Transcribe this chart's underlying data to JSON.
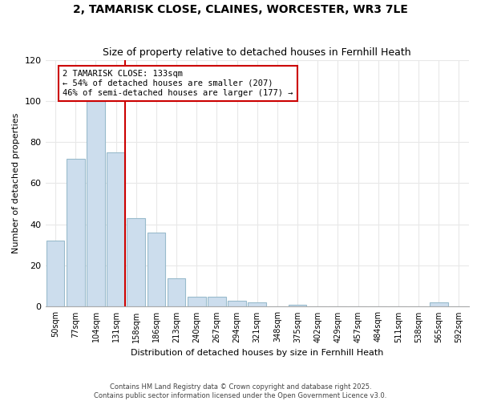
{
  "title1": "2, TAMARISK CLOSE, CLAINES, WORCESTER, WR3 7LE",
  "title2": "Size of property relative to detached houses in Fernhill Heath",
  "xlabel": "Distribution of detached houses by size in Fernhill Heath",
  "ylabel": "Number of detached properties",
  "bar_labels": [
    "50sqm",
    "77sqm",
    "104sqm",
    "131sqm",
    "158sqm",
    "186sqm",
    "213sqm",
    "240sqm",
    "267sqm",
    "294sqm",
    "321sqm",
    "348sqm",
    "375sqm",
    "402sqm",
    "429sqm",
    "457sqm",
    "484sqm",
    "511sqm",
    "538sqm",
    "565sqm",
    "592sqm"
  ],
  "bar_values": [
    32,
    72,
    100,
    75,
    43,
    36,
    14,
    5,
    5,
    3,
    2,
    0,
    1,
    0,
    0,
    0,
    0,
    0,
    0,
    2,
    0
  ],
  "bar_color": "#ccdded",
  "bar_edge_color": "#99bbcc",
  "marker_index": 3,
  "marker_color": "#cc0000",
  "annotation_title": "2 TAMARISK CLOSE: 133sqm",
  "annotation_line1": "← 54% of detached houses are smaller (207)",
  "annotation_line2": "46% of semi-detached houses are larger (177) →",
  "annotation_box_color": "#cc0000",
  "ylim": [
    0,
    120
  ],
  "yticks": [
    0,
    20,
    40,
    60,
    80,
    100,
    120
  ],
  "footnote1": "Contains HM Land Registry data © Crown copyright and database right 2025.",
  "footnote2": "Contains public sector information licensed under the Open Government Licence v3.0.",
  "bg_color": "#ffffff",
  "grid_color": "#e8e8e8"
}
